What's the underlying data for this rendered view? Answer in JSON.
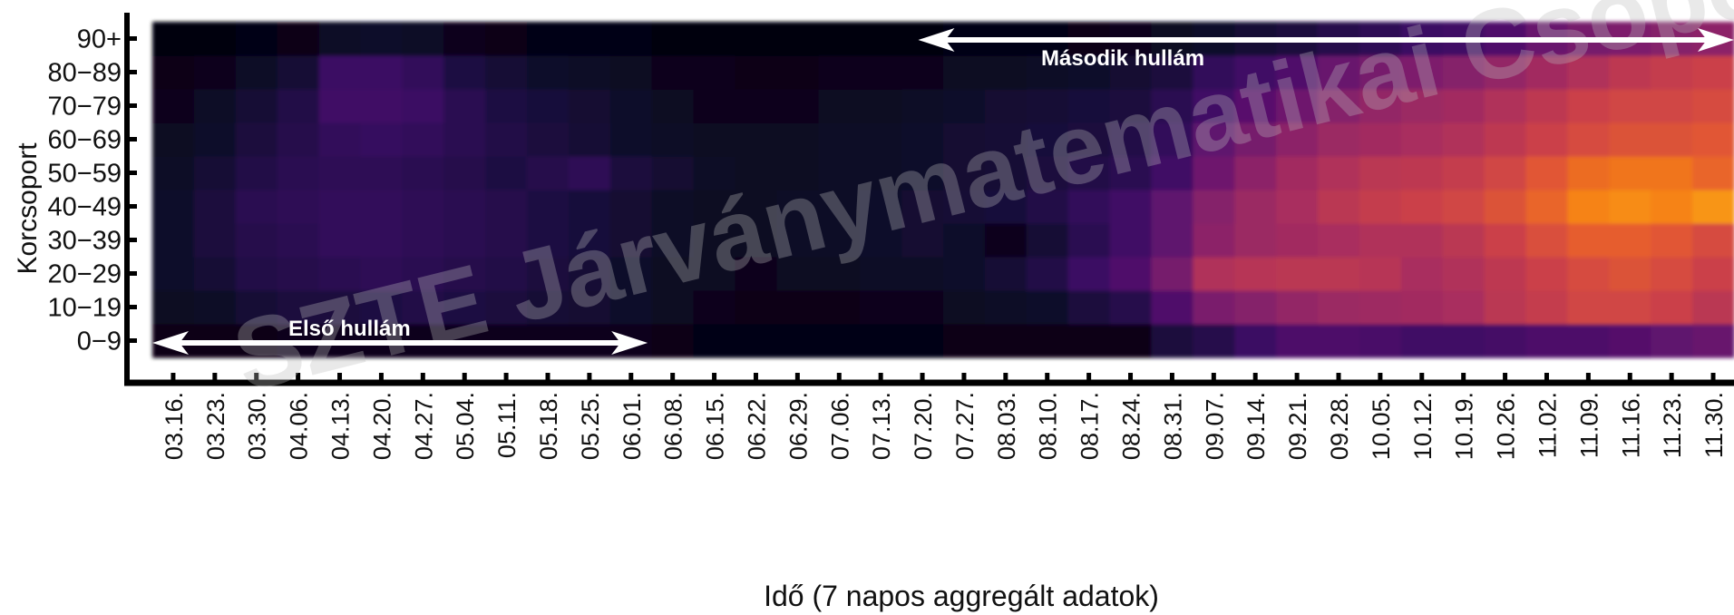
{
  "chart_data": {
    "type": "heatmap",
    "ylabel": "Korcsoport",
    "xlabel": "Idő (7 napos aggregált adatok)",
    "y_categories": [
      "0-9",
      "10-19",
      "20-29",
      "30-39",
      "40-49",
      "50-59",
      "60-69",
      "70-79",
      "80-89",
      "90+"
    ],
    "y_tick_labels": [
      "0−9",
      "10−19",
      "20−29",
      "30−39",
      "40−49",
      "50−59",
      "60−69",
      "70−79",
      "80−89",
      "90+"
    ],
    "x_categories": [
      "03.16.",
      "03.23.",
      "03.30.",
      "04.06.",
      "04.13.",
      "04.20.",
      "04.27.",
      "05.04.",
      "05.11.",
      "05.18.",
      "05.25.",
      "06.01.",
      "06.08.",
      "06.15.",
      "06.22.",
      "06.29.",
      "07.06.",
      "07.13.",
      "07.20.",
      "07.27.",
      "08.03.",
      "08.10.",
      "08.17.",
      "08.24.",
      "08.31.",
      "09.07.",
      "09.14.",
      "09.21.",
      "09.28.",
      "10.05.",
      "10.12.",
      "10.19.",
      "10.26.",
      "11.02.",
      "11.09.",
      "11.16.",
      "11.23.",
      "11.30."
    ],
    "color_scale": "inferno",
    "value_range": [
      0,
      1
    ],
    "values_note_rows": "rows ordered from 0-9 (bottom) to 90+ (top)",
    "values": [
      [
        0.04,
        0.04,
        0.04,
        0.05,
        0.05,
        0.05,
        0.05,
        0.05,
        0.05,
        0.05,
        0.05,
        0.05,
        0.04,
        0.03,
        0.03,
        0.03,
        0.03,
        0.03,
        0.03,
        0.04,
        0.04,
        0.04,
        0.04,
        0.04,
        0.12,
        0.15,
        0.2,
        0.25,
        0.25,
        0.24,
        0.22,
        0.22,
        0.23,
        0.25,
        0.25,
        0.27,
        0.3,
        0.32
      ],
      [
        0.06,
        0.07,
        0.1,
        0.12,
        0.12,
        0.13,
        0.14,
        0.13,
        0.12,
        0.1,
        0.09,
        0.08,
        0.06,
        0.05,
        0.04,
        0.04,
        0.04,
        0.05,
        0.05,
        0.06,
        0.07,
        0.08,
        0.12,
        0.15,
        0.26,
        0.37,
        0.4,
        0.44,
        0.46,
        0.47,
        0.48,
        0.5,
        0.55,
        0.58,
        0.62,
        0.62,
        0.6,
        0.55
      ],
      [
        0.08,
        0.1,
        0.14,
        0.15,
        0.16,
        0.17,
        0.16,
        0.15,
        0.14,
        0.12,
        0.1,
        0.08,
        0.06,
        0.06,
        0.05,
        0.06,
        0.06,
        0.07,
        0.07,
        0.08,
        0.1,
        0.14,
        0.2,
        0.26,
        0.36,
        0.52,
        0.54,
        0.55,
        0.55,
        0.54,
        0.5,
        0.52,
        0.56,
        0.6,
        0.64,
        0.66,
        0.64,
        0.6
      ],
      [
        0.08,
        0.12,
        0.15,
        0.16,
        0.18,
        0.18,
        0.17,
        0.16,
        0.15,
        0.13,
        0.11,
        0.09,
        0.07,
        0.06,
        0.06,
        0.07,
        0.07,
        0.08,
        0.09,
        0.08,
        0.05,
        0.1,
        0.16,
        0.22,
        0.3,
        0.42,
        0.46,
        0.48,
        0.5,
        0.52,
        0.52,
        0.55,
        0.6,
        0.65,
        0.7,
        0.7,
        0.68,
        0.64
      ],
      [
        0.08,
        0.12,
        0.16,
        0.17,
        0.18,
        0.18,
        0.17,
        0.16,
        0.15,
        0.13,
        0.11,
        0.09,
        0.07,
        0.06,
        0.06,
        0.07,
        0.07,
        0.08,
        0.09,
        0.1,
        0.11,
        0.14,
        0.18,
        0.22,
        0.3,
        0.4,
        0.46,
        0.5,
        0.55,
        0.58,
        0.6,
        0.62,
        0.66,
        0.72,
        0.8,
        0.82,
        0.8,
        0.84
      ],
      [
        0.07,
        0.1,
        0.14,
        0.16,
        0.17,
        0.17,
        0.16,
        0.15,
        0.13,
        0.15,
        0.17,
        0.12,
        0.09,
        0.07,
        0.06,
        0.06,
        0.07,
        0.07,
        0.08,
        0.09,
        0.1,
        0.12,
        0.14,
        0.16,
        0.22,
        0.34,
        0.42,
        0.48,
        0.52,
        0.55,
        0.56,
        0.58,
        0.62,
        0.68,
        0.74,
        0.76,
        0.76,
        0.72
      ],
      [
        0.06,
        0.08,
        0.12,
        0.15,
        0.18,
        0.19,
        0.18,
        0.16,
        0.14,
        0.12,
        0.1,
        0.08,
        0.07,
        0.06,
        0.06,
        0.06,
        0.07,
        0.07,
        0.08,
        0.09,
        0.1,
        0.11,
        0.12,
        0.14,
        0.18,
        0.3,
        0.36,
        0.42,
        0.46,
        0.48,
        0.5,
        0.52,
        0.56,
        0.6,
        0.64,
        0.66,
        0.66,
        0.68
      ],
      [
        0.05,
        0.07,
        0.1,
        0.14,
        0.22,
        0.22,
        0.2,
        0.16,
        0.13,
        0.11,
        0.09,
        0.08,
        0.06,
        0.05,
        0.05,
        0.05,
        0.06,
        0.06,
        0.07,
        0.08,
        0.09,
        0.1,
        0.11,
        0.12,
        0.16,
        0.22,
        0.28,
        0.34,
        0.4,
        0.44,
        0.46,
        0.48,
        0.52,
        0.56,
        0.6,
        0.62,
        0.62,
        0.64
      ],
      [
        0.04,
        0.05,
        0.07,
        0.1,
        0.2,
        0.2,
        0.18,
        0.13,
        0.1,
        0.08,
        0.07,
        0.06,
        0.05,
        0.05,
        0.04,
        0.04,
        0.05,
        0.05,
        0.05,
        0.06,
        0.06,
        0.07,
        0.08,
        0.09,
        0.12,
        0.18,
        0.22,
        0.26,
        0.32,
        0.36,
        0.38,
        0.4,
        0.44,
        0.48,
        0.52,
        0.56,
        0.58,
        0.6
      ],
      [
        0.02,
        0.02,
        0.03,
        0.04,
        0.07,
        0.08,
        0.07,
        0.05,
        0.04,
        0.03,
        0.03,
        0.03,
        0.02,
        0.02,
        0.02,
        0.02,
        0.02,
        0.02,
        0.02,
        0.03,
        0.03,
        0.03,
        0.04,
        0.05,
        0.06,
        0.08,
        0.1,
        0.12,
        0.15,
        0.17,
        0.2,
        0.22,
        0.26,
        0.32,
        0.36,
        0.38,
        0.4,
        0.42
      ]
    ],
    "annotations": [
      {
        "text": "Első hullám",
        "from": "03.16.",
        "to": "06.01."
      },
      {
        "text": "Második hullám",
        "from": "07.20.",
        "to": "11.30."
      }
    ],
    "grid": false,
    "legend": "none"
  },
  "watermark": "SZTE Járványmatematikai Csoport"
}
